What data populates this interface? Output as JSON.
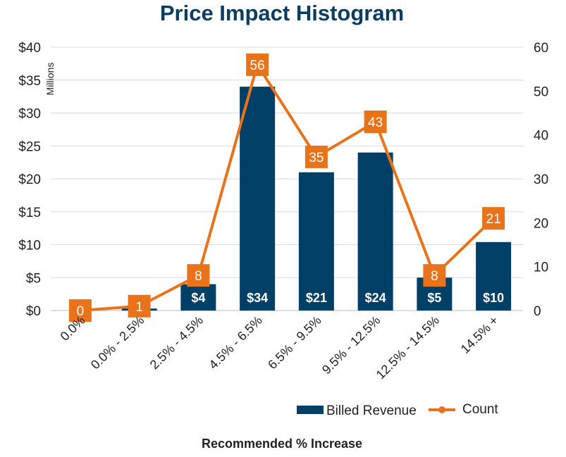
{
  "chart_data": {
    "type": "bar",
    "title": "Price Impact Histogram",
    "xlabel": "Recommended % Increase",
    "ylabel_unit": "Millions",
    "categories": [
      "0.0%",
      "0.0% - 2.5%",
      "2.5% - 4.5%",
      "4.5% - 6.5%",
      "6.5% - 9.5%",
      "9.5% - 12.5%",
      "12.5% - 14.5%",
      "14.5% +"
    ],
    "y_left": {
      "ylim": [
        0,
        40
      ],
      "ticks": [
        "$0",
        "$5",
        "$10",
        "$15",
        "$20",
        "$25",
        "$30",
        "$35",
        "$40"
      ],
      "tick_values": [
        0,
        5,
        10,
        15,
        20,
        25,
        30,
        35,
        40
      ]
    },
    "y_right": {
      "ylim": [
        0,
        60
      ],
      "ticks": [
        "0",
        "10",
        "20",
        "30",
        "40",
        "50",
        "60"
      ],
      "tick_values": [
        0,
        10,
        20,
        30,
        40,
        50,
        60
      ]
    },
    "series": [
      {
        "name": "Billed Revenue",
        "type": "bar",
        "axis": "left",
        "color": "#003f66",
        "values": [
          0,
          0.3,
          4,
          34,
          21,
          24,
          5,
          10.4
        ],
        "labels": [
          "",
          "",
          "$4",
          "$34",
          "$21",
          "$24",
          "$5",
          "$10"
        ]
      },
      {
        "name": "Count",
        "type": "line",
        "axis": "right",
        "color": "#e8731a",
        "values": [
          0,
          1,
          8,
          56,
          35,
          43,
          8,
          21
        ],
        "labels": [
          "0",
          "1",
          "8",
          "56",
          "35",
          "43",
          "8",
          "21"
        ]
      }
    ],
    "grid": true,
    "legend": "bottom-right"
  }
}
